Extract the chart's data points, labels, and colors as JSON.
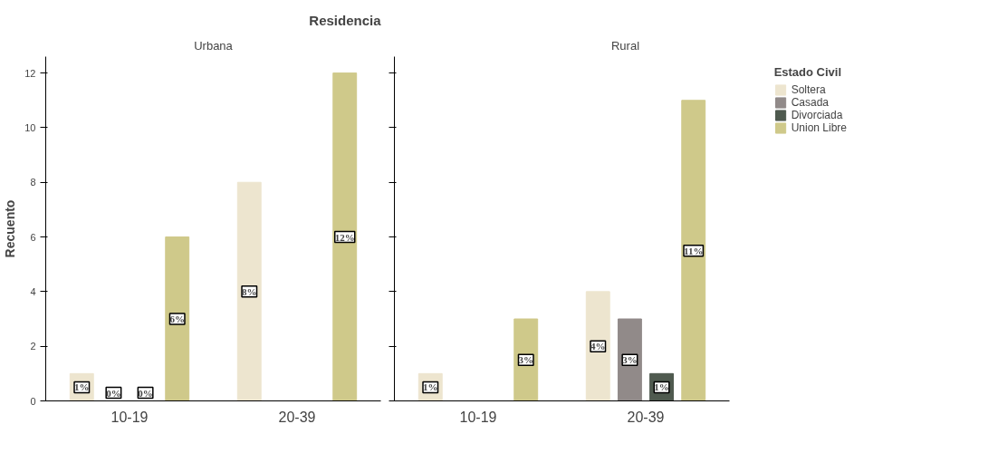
{
  "chart_data": [
    {
      "type": "bar",
      "title": "Residencia",
      "subtitle": "Urbana",
      "ylabel": "Recuento",
      "categories": [
        "10-19",
        "20-39"
      ],
      "ylim": [
        0,
        12.6
      ],
      "yticks": [
        0,
        2,
        4,
        6,
        8,
        10,
        12
      ],
      "grid": false,
      "series": [
        {
          "color": "#ede5cf",
          "values": [
            1,
            8
          ],
          "value_labels": [
            "1%",
            "8%"
          ]
        },
        {
          "color": "#918a89",
          "values": [
            0,
            null
          ],
          "value_labels": [
            "0%",
            null
          ]
        },
        {
          "color": "#4f5a4f",
          "values": [
            0,
            null
          ],
          "value_labels": [
            "0%",
            null
          ]
        },
        {
          "color": "#cfc98a",
          "values": [
            6,
            12
          ],
          "value_labels": [
            "6%",
            "12%"
          ]
        }
      ]
    },
    {
      "type": "bar",
      "subtitle": "Rural",
      "categories": [
        "10-19",
        "20-39"
      ],
      "ylim": [
        0,
        12.6
      ],
      "yticks": [
        0,
        2,
        4,
        6,
        8,
        10,
        12
      ],
      "tick_labels": "x",
      "grid": false,
      "legend": "right",
      "legend_title": "Estado Civil",
      "series": [
        {
          "name": "Soltera",
          "color": "#ede5cf",
          "values": [
            1,
            4
          ],
          "value_labels": [
            "1%",
            "4%"
          ]
        },
        {
          "name": "Casada",
          "color": "#918a89",
          "values": [
            null,
            3
          ],
          "value_labels": [
            null,
            "3%"
          ]
        },
        {
          "name": "Divorciada",
          "color": "#4f5a4f",
          "values": [
            null,
            1
          ],
          "value_labels": [
            null,
            "1%"
          ]
        },
        {
          "name": "Union Libre",
          "color": "#cfc98a",
          "values": [
            3,
            11
          ],
          "value_labels": [
            "3%",
            "11%"
          ]
        }
      ]
    }
  ]
}
